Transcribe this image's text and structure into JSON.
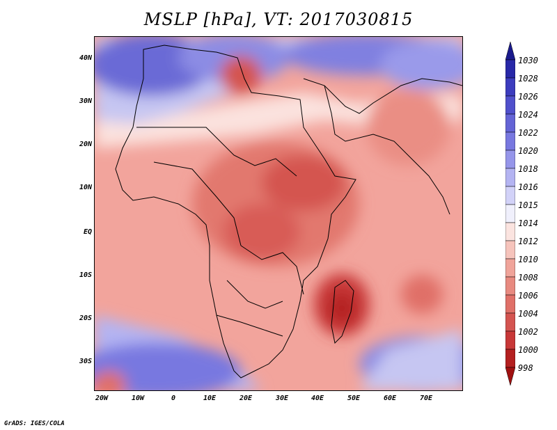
{
  "title": "MSLP [hPa], VT: 2017030815",
  "credit": "GrADS: IGES/COLA",
  "map": {
    "lon_range": [
      -22,
      80
    ],
    "lat_range": [
      -36,
      46
    ],
    "lat_ticks": [
      "40N",
      "30N",
      "20N",
      "10N",
      "EQ",
      "10S",
      "20S",
      "30S"
    ],
    "lat_values": [
      40,
      30,
      20,
      10,
      0,
      -10,
      -20,
      -30
    ],
    "lon_ticks": [
      "20W",
      "10W",
      "0",
      "10E",
      "20E",
      "30E",
      "40E",
      "50E",
      "60E",
      "70E"
    ],
    "lon_values": [
      -20,
      -10,
      0,
      10,
      20,
      30,
      40,
      50,
      60,
      70
    ]
  },
  "colorbar": {
    "labels": [
      "1030",
      "1028",
      "1026",
      "1024",
      "1022",
      "1020",
      "1018",
      "1016",
      "1015",
      "1014",
      "1012",
      "1010",
      "1008",
      "1006",
      "1004",
      "1002",
      "1000",
      "998"
    ],
    "colors": [
      "#1a1a8c",
      "#2828a8",
      "#3c3cbe",
      "#5050cc",
      "#6464d6",
      "#7878e0",
      "#9696ea",
      "#b4b4f2",
      "#d2d2f8",
      "#f0f0fc",
      "#fbe4e0",
      "#f6c4bc",
      "#f0a49a",
      "#e88a80",
      "#e07068",
      "#d45450",
      "#c83838",
      "#b42020",
      "#a01010"
    ]
  }
}
